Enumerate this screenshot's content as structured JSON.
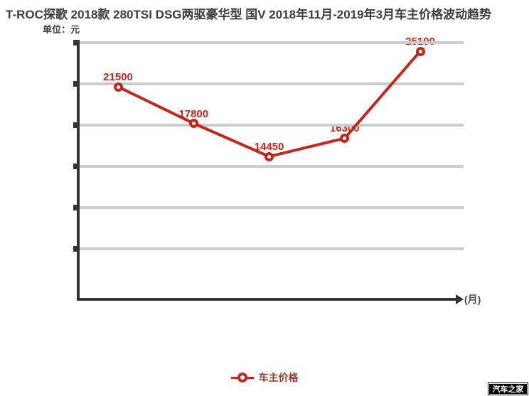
{
  "title": "T-ROC探歌 2018款 280TSI DSG两驱豪华型 国V 2018年11月-2019年3月车主价格波动趋势",
  "unit_label": "单位：元",
  "x_axis_label": "(月)",
  "legend": {
    "label": "车主价格"
  },
  "watermark": "汽车之家",
  "colors": {
    "line": "#c0281f",
    "point_label": "#c0281f",
    "legend_text": "#8c3a30",
    "grid": "#cccccc",
    "axis": "#333333",
    "title": "#3d3d3d",
    "watermark_bg": "#000000",
    "watermark_text": "#ffffff"
  },
  "chart_data": {
    "type": "line",
    "title": "T-ROC探歌 2018款 280TSI DSG两驱豪华型 国V 2018年11月-2019年3月车主价格波动趋势",
    "xlabel": "(月)",
    "ylabel": "单位：元",
    "series": [
      {
        "name": "车主价格",
        "values": [
          21500,
          17800,
          14450,
          16300,
          25100
        ]
      }
    ],
    "point_labels": [
      "21500",
      "17800",
      "14450",
      "16300",
      "25100"
    ],
    "ylim": [
      0,
      26000
    ],
    "grid": true,
    "x_tick_labels": [],
    "y_tick_labels": [],
    "legend_position": "bottom"
  }
}
